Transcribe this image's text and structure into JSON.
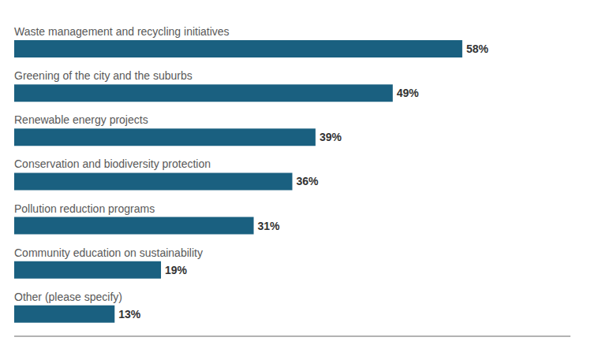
{
  "chart_data": {
    "type": "bar",
    "orientation": "horizontal",
    "categories": [
      "Other (please specify)",
      "Community education on sustainability",
      "Pollution reduction programs",
      "Conservation and biodiversity protection",
      "Renewable energy projects",
      "Greening of the city and the suburbs",
      "Waste management and recycling initiatives"
    ],
    "values": [
      13,
      19,
      31,
      36,
      39,
      49,
      58
    ],
    "value_labels": [
      "13%",
      "19%",
      "31%",
      "36%",
      "39%",
      "49%",
      "58%"
    ],
    "color": "#1a6080",
    "xlim": [
      0,
      72
    ],
    "data_labels": true,
    "tick_labels": false,
    "grid": false
  }
}
